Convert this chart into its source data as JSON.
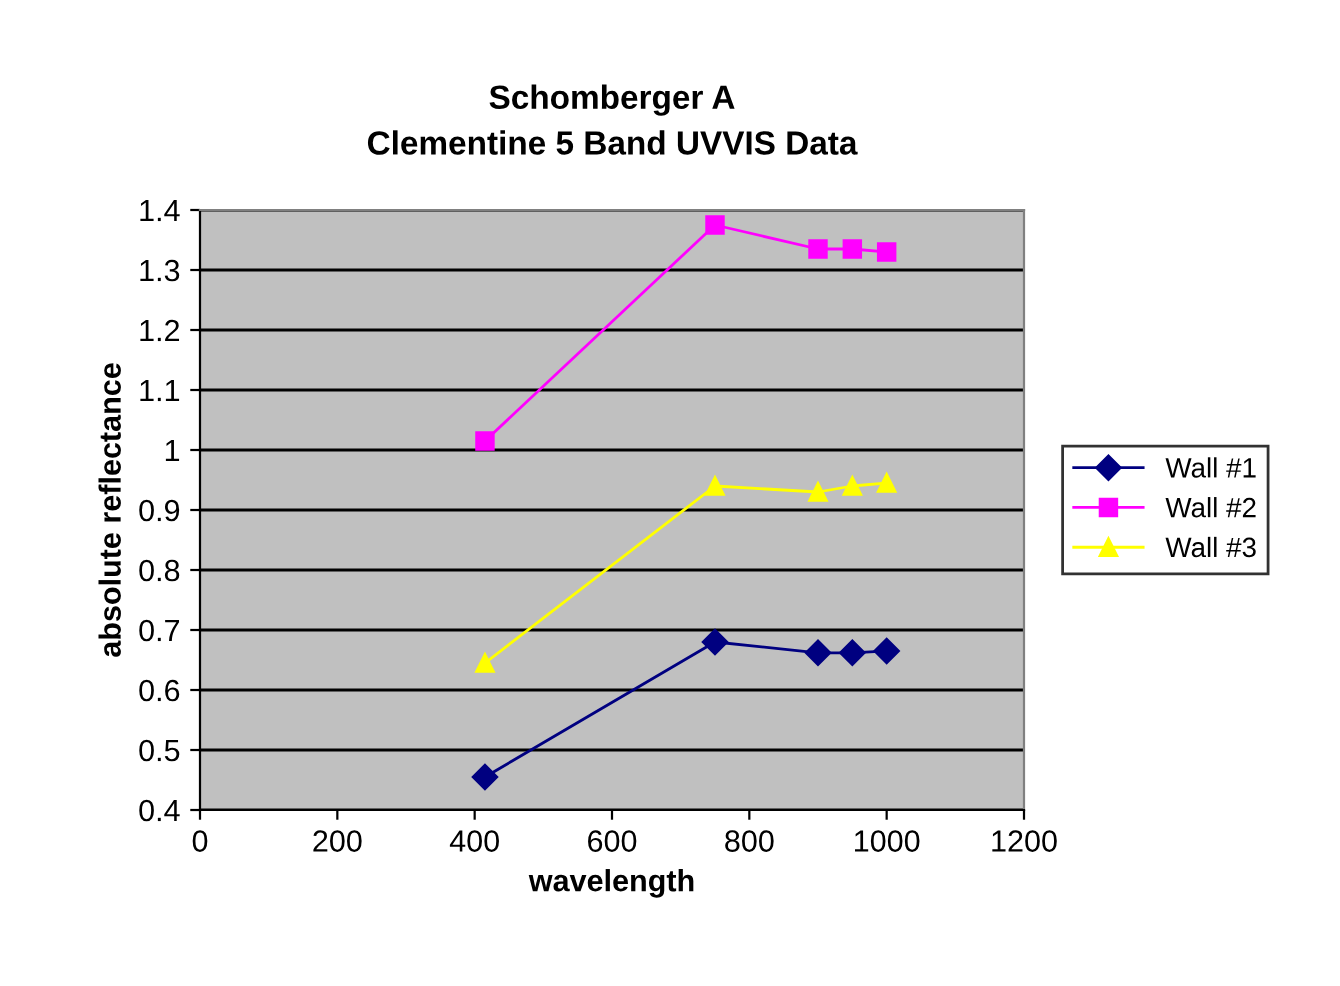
{
  "chart_data": {
    "type": "line",
    "title": "Schomberger A\nClementine 5 Band UVVIS Data",
    "xlabel": "wavelength",
    "ylabel": "absolute reflectance",
    "x": [
      415,
      750,
      900,
      950,
      1000
    ],
    "series": [
      {
        "name": "Wall #1",
        "color": "#000080",
        "marker": "diamond",
        "values": [
          0.455,
          0.68,
          0.662,
          0.662,
          0.665
        ]
      },
      {
        "name": "Wall #2",
        "color": "#ff00ff",
        "marker": "square",
        "values": [
          1.015,
          1.375,
          1.335,
          1.335,
          1.33
        ]
      },
      {
        "name": "Wall #3",
        "color": "#ffff00",
        "marker": "triangle",
        "values": [
          0.645,
          0.94,
          0.93,
          0.94,
          0.945
        ]
      }
    ],
    "xlim": [
      0,
      1200
    ],
    "xticks": [
      0,
      200,
      400,
      600,
      800,
      1000,
      1200
    ],
    "ylim": [
      0.4,
      1.4
    ],
    "yticks": [
      0.4,
      0.5,
      0.6,
      0.7,
      0.8,
      0.9,
      1,
      1.1,
      1.2,
      1.3,
      1.4
    ],
    "grid": "y",
    "legend": "right"
  }
}
